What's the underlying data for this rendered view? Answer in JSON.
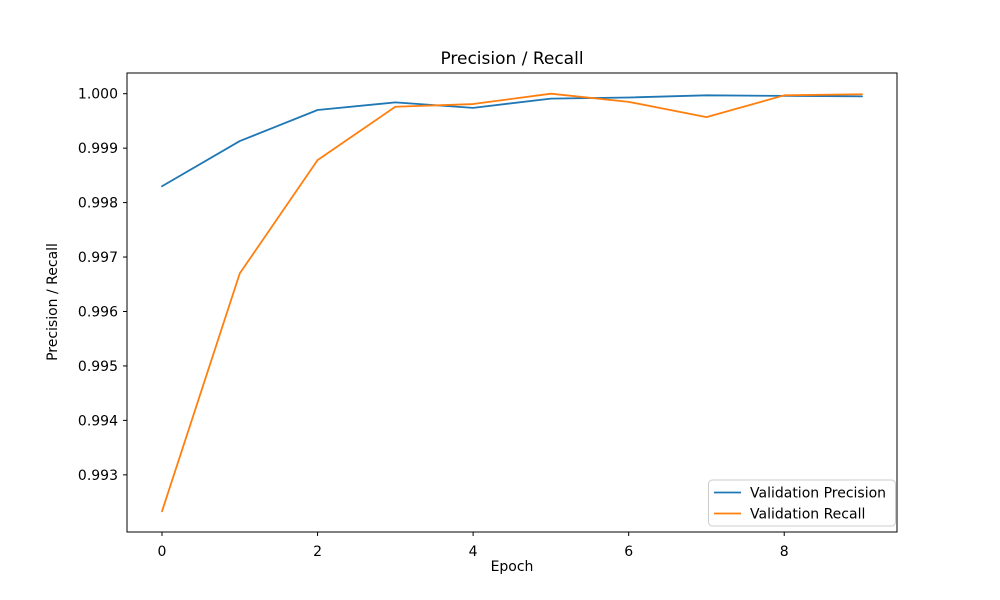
{
  "figure": {
    "background": "#ffffff",
    "text_color": "#000000",
    "spine_color": "#000000"
  },
  "chart_data": {
    "type": "line",
    "title": "Precision / Recall",
    "xlabel": "Epoch",
    "ylabel": "Precision / Recall",
    "x": [
      0,
      1,
      2,
      3,
      4,
      5,
      6,
      7,
      8,
      9
    ],
    "series": [
      {
        "name": "Validation Precision",
        "color": "#1f77b4",
        "values": [
          0.9983,
          0.99913,
          0.9997,
          0.99984,
          0.99974,
          0.99991,
          0.99993,
          0.99997,
          0.99996,
          0.99995
        ]
      },
      {
        "name": "Validation Recall",
        "color": "#ff7f0e",
        "values": [
          0.99233,
          0.9967,
          0.99878,
          0.99976,
          0.99981,
          1.0,
          0.99985,
          0.99957,
          0.99997,
          0.99999
        ]
      }
    ],
    "xlim": [
      -0.45,
      9.45
    ],
    "ylim": [
      0.99195,
      1.00038
    ],
    "xticks": [
      0,
      2,
      4,
      6,
      8
    ],
    "yticks": [
      0.993,
      0.994,
      0.995,
      0.996,
      0.997,
      0.998,
      0.999,
      1.0
    ],
    "grid": false,
    "legend_position": "lower right",
    "legend_border_color": "#cccccc",
    "legend_background": "#ffffff"
  }
}
